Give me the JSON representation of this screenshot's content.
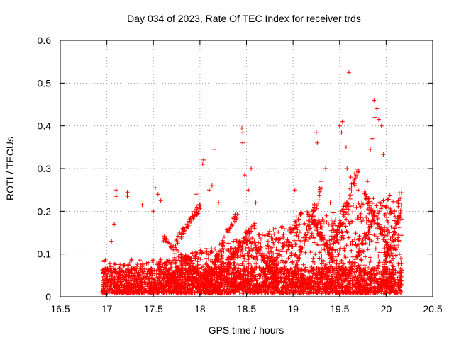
{
  "chart_data": {
    "type": "scatter",
    "title": "Day 034 of 2023, Rate Of TEC Index for receiver trds",
    "xlabel": "GPS time / hours",
    "ylabel": "ROTI / TECUs",
    "xlim": [
      16.5,
      20.5
    ],
    "ylim": [
      0,
      0.6
    ],
    "xticks": [
      "16.5",
      "17",
      "17.5",
      "18",
      "18.5",
      "19",
      "19.5",
      "20",
      "20.5"
    ],
    "yticks": [
      "0",
      "0.1",
      "0.2",
      "0.3",
      "0.4",
      "0.5",
      "0.6"
    ],
    "grid": true,
    "legend": "none",
    "marker": "plus",
    "color": "#ff0000",
    "x_data_range": [
      16.95,
      20.17
    ],
    "highlight_points": [
      [
        17.08,
        0.17
      ],
      [
        17.1,
        0.25
      ],
      [
        17.1,
        0.235
      ],
      [
        17.05,
        0.13
      ],
      [
        17.22,
        0.245
      ],
      [
        17.22,
        0.235
      ],
      [
        17.38,
        0.215
      ],
      [
        17.5,
        0.2
      ],
      [
        17.52,
        0.255
      ],
      [
        17.55,
        0.24
      ],
      [
        17.58,
        0.225
      ],
      [
        17.96,
        0.24
      ],
      [
        18.03,
        0.31
      ],
      [
        18.04,
        0.32
      ],
      [
        18.1,
        0.25
      ],
      [
        18.13,
        0.26
      ],
      [
        18.15,
        0.345
      ],
      [
        18.2,
        0.22
      ],
      [
        18.45,
        0.395
      ],
      [
        18.46,
        0.385
      ],
      [
        18.46,
        0.36
      ],
      [
        18.48,
        0.285
      ],
      [
        18.52,
        0.25
      ],
      [
        18.55,
        0.3
      ],
      [
        18.6,
        0.22
      ],
      [
        19.02,
        0.25
      ],
      [
        19.25,
        0.385
      ],
      [
        19.26,
        0.36
      ],
      [
        19.3,
        0.27
      ],
      [
        19.35,
        0.3
      ],
      [
        19.4,
        0.22
      ],
      [
        19.5,
        0.4
      ],
      [
        19.52,
        0.385
      ],
      [
        19.53,
        0.41
      ],
      [
        19.57,
        0.35
      ],
      [
        19.6,
        0.525
      ],
      [
        19.58,
        0.3
      ],
      [
        19.62,
        0.28
      ],
      [
        19.7,
        0.25
      ],
      [
        19.8,
        0.27
      ],
      [
        19.83,
        0.345
      ],
      [
        19.85,
        0.37
      ],
      [
        19.87,
        0.46
      ],
      [
        19.9,
        0.44
      ],
      [
        19.88,
        0.42
      ],
      [
        19.92,
        0.415
      ],
      [
        19.95,
        0.4
      ],
      [
        19.97,
        0.333
      ],
      [
        20.0,
        0.21
      ],
      [
        20.05,
        0.2
      ],
      [
        20.15,
        0.23
      ],
      [
        20.13,
        0.22
      ]
    ]
  }
}
